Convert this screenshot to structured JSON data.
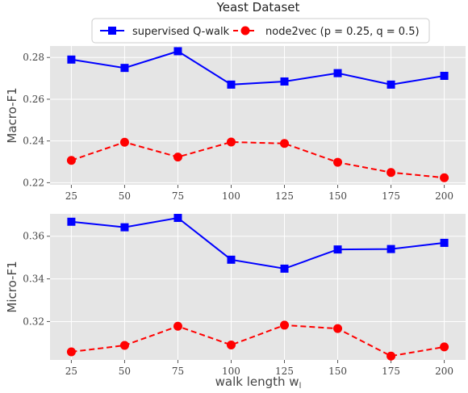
{
  "figure": {
    "title": "Yeast Dataset",
    "xlabel": "walk length w",
    "xlabel_subscript": "l"
  },
  "legend": {
    "placement": "top-center",
    "entries": [
      {
        "label": "supervised Q-walk",
        "color": "#0000ff",
        "marker": "square",
        "linestyle": "solid"
      },
      {
        "label": "node2vec (p = 0.25, q = 0.5)",
        "color": "#ff0000",
        "marker": "circle",
        "linestyle": "dashed"
      }
    ]
  },
  "chart_data": [
    {
      "type": "line",
      "ylabel": "Macro-F1",
      "x": [
        25,
        50,
        75,
        100,
        125,
        150,
        175,
        200
      ],
      "xticks": [
        25,
        50,
        75,
        100,
        125,
        150,
        175,
        200
      ],
      "xlim": [
        15,
        210
      ],
      "ylim": [
        0.219,
        0.2855
      ],
      "yticks": [
        0.22,
        0.24,
        0.26,
        0.28
      ],
      "ytick_labels": [
        "0.22",
        "0.24",
        "0.26",
        "0.28"
      ],
      "grid": true,
      "series": [
        {
          "name": "supervised Q-walk",
          "color": "#0000ff",
          "marker": "square",
          "linestyle": "solid",
          "values": [
            0.279,
            0.275,
            0.283,
            0.267,
            0.2685,
            0.2725,
            0.267,
            0.2712
          ]
        },
        {
          "name": "node2vec (p = 0.25, q = 0.5)",
          "color": "#ff0000",
          "marker": "circle",
          "linestyle": "dashed",
          "values": [
            0.2307,
            0.2394,
            0.2323,
            0.2395,
            0.2388,
            0.2298,
            0.2249,
            0.2224
          ]
        }
      ]
    },
    {
      "type": "line",
      "ylabel": "Micro-F1",
      "x": [
        25,
        50,
        75,
        100,
        125,
        150,
        175,
        200
      ],
      "xticks": [
        25,
        50,
        75,
        100,
        125,
        150,
        175,
        200
      ],
      "xlim": [
        15,
        210
      ],
      "ylim": [
        0.302,
        0.3705
      ],
      "yticks": [
        0.32,
        0.34,
        0.36
      ],
      "ytick_labels": [
        "0.32",
        "0.34",
        "0.36"
      ],
      "grid": true,
      "series": [
        {
          "name": "supervised Q-walk",
          "color": "#0000ff",
          "marker": "square",
          "linestyle": "solid",
          "values": [
            0.3668,
            0.3642,
            0.3686,
            0.349,
            0.3448,
            0.3538,
            0.354,
            0.3569
          ]
        },
        {
          "name": "node2vec (p = 0.25, q = 0.5)",
          "color": "#ff0000",
          "marker": "circle",
          "linestyle": "dashed",
          "values": [
            0.3058,
            0.3088,
            0.3178,
            0.309,
            0.3183,
            0.3167,
            0.3038,
            0.3081
          ]
        }
      ]
    }
  ]
}
